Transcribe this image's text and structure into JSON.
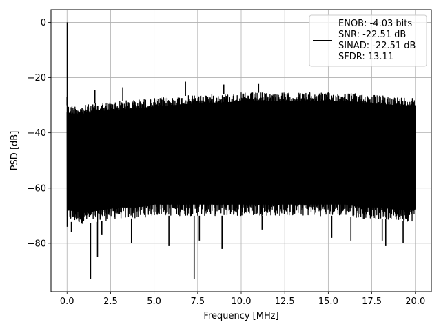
{
  "chart_data": {
    "type": "line",
    "xlabel": "Frequency [MHz]",
    "ylabel": "PSD [dB]",
    "xlim": [
      -0.92,
      20.92
    ],
    "ylim": [
      -97.5,
      4.6
    ],
    "xticks": [
      0.0,
      2.5,
      5.0,
      7.5,
      10.0,
      12.5,
      15.0,
      17.5,
      20.0
    ],
    "xtick_labels": [
      "0.0",
      "2.5",
      "5.0",
      "7.5",
      "10.0",
      "12.5",
      "15.0",
      "17.5",
      "20.0"
    ],
    "yticks": [
      0,
      -20,
      -40,
      -60,
      -80
    ],
    "ytick_labels": [
      "0",
      "−20",
      "−40",
      "−60",
      "−80"
    ],
    "grid": true,
    "legend_position": "top-right",
    "legend_lines": [
      "ENOB: -4.03 bits",
      "SNR: -22.51 dB",
      "SINAD: -22.51 dB",
      "SFDR: 13.11"
    ],
    "series": [
      {
        "color": "#000000",
        "x_range": [
          0.0,
          20.0
        ],
        "peak": {
          "x": 0.02,
          "y": 0.0
        },
        "upper_envelope": [
          -30,
          -30,
          -29,
          -28.5,
          -28,
          -27.5,
          -27,
          -26.5,
          -26,
          -26,
          -25.5,
          -25.5,
          -25.5,
          -25.5,
          -25.5,
          -25.5,
          -25.5,
          -26,
          -26.5,
          -27,
          -27
        ],
        "lower_envelope": [
          -72,
          -73,
          -72,
          -71,
          -71,
          -70,
          -70,
          -70,
          -70,
          -70,
          -70,
          -70,
          -70,
          -70,
          -70,
          -70,
          -70,
          -71,
          -71,
          -72,
          -72
        ],
        "spurs": [
          {
            "x": 0.0,
            "y": -27
          },
          {
            "x": 1.6,
            "y": -24.5
          },
          {
            "x": 3.2,
            "y": -23.5
          },
          {
            "x": 6.8,
            "y": -21.5
          },
          {
            "x": 9.0,
            "y": -22.5
          },
          {
            "x": 11.0,
            "y": -22.3
          }
        ],
        "dips": [
          {
            "x": 0.25,
            "y": -76
          },
          {
            "x": 1.35,
            "y": -93
          },
          {
            "x": 1.75,
            "y": -85
          },
          {
            "x": 2.0,
            "y": -77
          },
          {
            "x": 3.7,
            "y": -80
          },
          {
            "x": 5.85,
            "y": -81
          },
          {
            "x": 7.3,
            "y": -93
          },
          {
            "x": 7.6,
            "y": -79
          },
          {
            "x": 8.9,
            "y": -82
          },
          {
            "x": 11.2,
            "y": -75
          },
          {
            "x": 15.2,
            "y": -78
          },
          {
            "x": 16.3,
            "y": -79
          },
          {
            "x": 18.1,
            "y": -79
          },
          {
            "x": 18.3,
            "y": -81
          },
          {
            "x": 19.3,
            "y": -80
          }
        ]
      }
    ]
  }
}
